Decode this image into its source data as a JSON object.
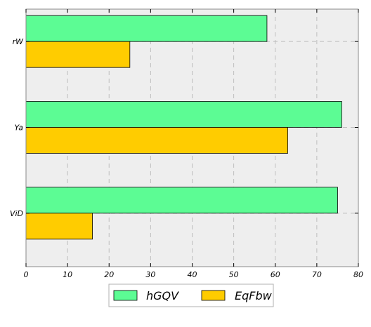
{
  "chart_data": {
    "type": "bar",
    "orientation": "horizontal",
    "categories": [
      "rW",
      "Ya",
      "ViD"
    ],
    "series": [
      {
        "name": "hGQV",
        "values": [
          58,
          76,
          75
        ],
        "color": "#5cfc94"
      },
      {
        "name": "EqFbw",
        "values": [
          25,
          63,
          16
        ],
        "color": "#ffcc00"
      }
    ],
    "xlim": [
      0,
      80
    ],
    "xticks": [
      "0",
      "10",
      "20",
      "30",
      "40",
      "50",
      "60",
      "70",
      "80"
    ],
    "title": "",
    "xlabel": "",
    "ylabel": "",
    "grid": true,
    "legend_position": "bottom-center",
    "plot_background": "#eeeeee"
  }
}
